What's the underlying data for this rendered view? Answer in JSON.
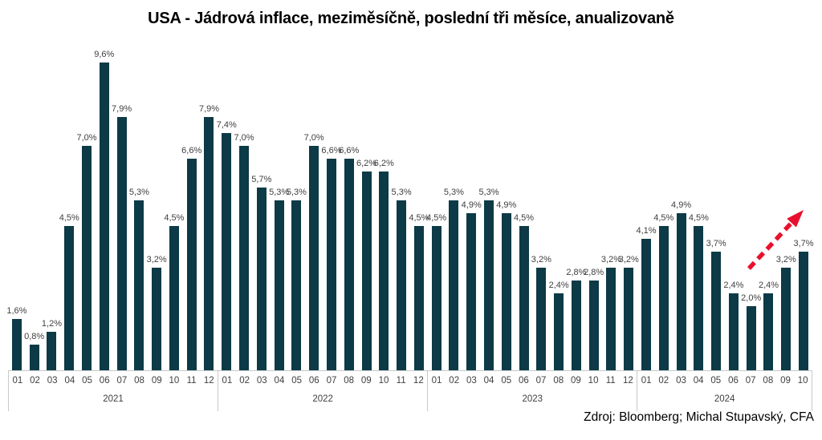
{
  "title": "USA - Jádrová inflace, meziměsíčně, poslední tři měsíce, anualizovaně",
  "source": "Zdroj: Bloomberg; Michal Stupavský, CFA",
  "colors": {
    "bar": "#0c3a46",
    "arrow": "#e8112d",
    "label_text": "#404040",
    "axis_line": "#c8c8c8",
    "title_text": "#000000"
  },
  "chart_data": {
    "type": "bar",
    "title": "USA - Jádrová inflace, meziměsíčně, poslední tři měsíce, anualizovaně",
    "xlabel": "",
    "ylabel": "",
    "ylim": [
      0,
      10
    ],
    "grid": false,
    "legend": false,
    "value_unit": "%",
    "value_format": "czech-decimal-comma",
    "groups": [
      {
        "year": "2021",
        "categories": [
          "01",
          "02",
          "03",
          "04",
          "05",
          "06",
          "07",
          "08",
          "09",
          "10",
          "11",
          "12"
        ],
        "values": [
          1.6,
          0.8,
          1.2,
          4.5,
          7.0,
          9.6,
          7.9,
          5.3,
          3.2,
          4.5,
          6.6,
          7.9
        ],
        "labels": [
          "1,6%",
          "0,8%",
          "1,2%",
          "4,5%",
          "7,0%",
          "9,6%",
          "7,9%",
          "5,3%",
          "3,2%",
          "4,5%",
          "6,6%",
          "7,9%"
        ]
      },
      {
        "year": "2022",
        "categories": [
          "01",
          "02",
          "03",
          "04",
          "05",
          "06",
          "07",
          "08",
          "09",
          "10",
          "11",
          "12"
        ],
        "values": [
          7.4,
          7.0,
          5.7,
          5.3,
          5.3,
          7.0,
          6.6,
          6.6,
          6.2,
          6.2,
          5.3,
          4.5
        ],
        "labels": [
          "7,4%",
          "7,0%",
          "5,7%",
          "5,3%",
          "5,3%",
          "7,0%",
          "6,6%",
          "6,6%",
          "6,2%",
          "6,2%",
          "5,3%",
          "4,5%"
        ]
      },
      {
        "year": "2023",
        "categories": [
          "01",
          "02",
          "03",
          "04",
          "05",
          "06",
          "07",
          "08",
          "09",
          "10",
          "11",
          "12"
        ],
        "values": [
          4.5,
          5.3,
          4.9,
          5.3,
          4.9,
          4.5,
          3.2,
          2.4,
          2.8,
          2.8,
          3.2,
          3.2
        ],
        "labels": [
          "4,5%",
          "5,3%",
          "4,9%",
          "5,3%",
          "4,9%",
          "4,5%",
          "3,2%",
          "2,4%",
          "2,8%",
          "2,8%",
          "3,2%",
          "3,2%"
        ]
      },
      {
        "year": "2024",
        "categories": [
          "01",
          "02",
          "03",
          "04",
          "05",
          "06",
          "07",
          "08",
          "09",
          "10"
        ],
        "values": [
          4.1,
          4.5,
          4.9,
          4.5,
          3.7,
          2.4,
          2.0,
          2.4,
          3.2,
          3.7
        ],
        "labels": [
          "4,1%",
          "4,5%",
          "4,9%",
          "4,5%",
          "3,7%",
          "2,4%",
          "2,0%",
          "2,4%",
          "3,2%",
          "3,7%"
        ]
      }
    ],
    "annotation": {
      "type": "dashed-arrow",
      "direction": "up-right",
      "color": "#e8112d",
      "meaning": "rising trend over last months of 2024"
    }
  }
}
